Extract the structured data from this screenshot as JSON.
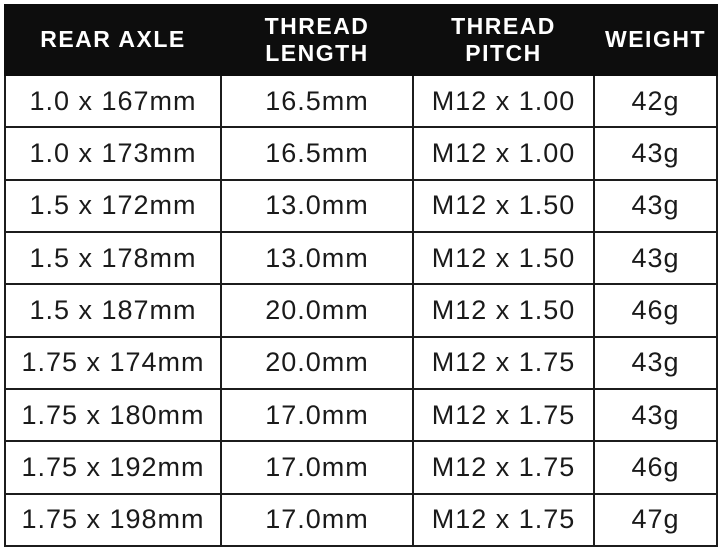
{
  "table": {
    "headers": [
      "REAR AXLE",
      "THREAD\nLENGTH",
      "THREAD\nPITCH",
      "WEIGHT"
    ],
    "rows": [
      [
        "1.0 x 167mm",
        "16.5mm",
        "M12 x 1.00",
        "42g"
      ],
      [
        "1.0 x 173mm",
        "16.5mm",
        "M12 x 1.00",
        "43g"
      ],
      [
        "1.5 x 172mm",
        "13.0mm",
        "M12 x 1.50",
        "43g"
      ],
      [
        "1.5 x 178mm",
        "13.0mm",
        "M12 x 1.50",
        "43g"
      ],
      [
        "1.5 x 187mm",
        "20.0mm",
        "M12 x 1.50",
        "46g"
      ],
      [
        "1.75 x 174mm",
        "20.0mm",
        "M12 x 1.75",
        "43g"
      ],
      [
        "1.75 x 180mm",
        "17.0mm",
        "M12 x 1.75",
        "43g"
      ],
      [
        "1.75 x 192mm",
        "17.0mm",
        "M12 x 1.75",
        "46g"
      ],
      [
        "1.75 x 198mm",
        "17.0mm",
        "M12 x 1.75",
        "47g"
      ]
    ]
  },
  "colors": {
    "header_bg": "#0d0d0d",
    "header_text": "#ffffff",
    "body_text": "#1a1a1a",
    "border": "#1c1c1c",
    "row_bg": "#ffffff"
  },
  "chart_data": {
    "type": "table",
    "title": "",
    "columns": [
      "REAR AXLE",
      "THREAD LENGTH",
      "THREAD PITCH",
      "WEIGHT"
    ],
    "rows": [
      [
        "1.0 x 167mm",
        "16.5mm",
        "M12 x 1.00",
        "42g"
      ],
      [
        "1.0 x 173mm",
        "16.5mm",
        "M12 x 1.00",
        "43g"
      ],
      [
        "1.5 x 172mm",
        "13.0mm",
        "M12 x 1.50",
        "43g"
      ],
      [
        "1.5 x 178mm",
        "13.0mm",
        "M12 x 1.50",
        "43g"
      ],
      [
        "1.5 x 187mm",
        "20.0mm",
        "M12 x 1.50",
        "46g"
      ],
      [
        "1.75 x 174mm",
        "20.0mm",
        "M12 x 1.75",
        "43g"
      ],
      [
        "1.75 x 180mm",
        "17.0mm",
        "M12 x 1.75",
        "43g"
      ],
      [
        "1.75 x 192mm",
        "17.0mm",
        "M12 x 1.75",
        "46g"
      ],
      [
        "1.75 x 198mm",
        "17.0mm",
        "M12 x 1.75",
        "47g"
      ]
    ],
    "layout": {
      "header_style": "black-background-white-text",
      "grid": "on",
      "cell_alignment": "center"
    }
  }
}
